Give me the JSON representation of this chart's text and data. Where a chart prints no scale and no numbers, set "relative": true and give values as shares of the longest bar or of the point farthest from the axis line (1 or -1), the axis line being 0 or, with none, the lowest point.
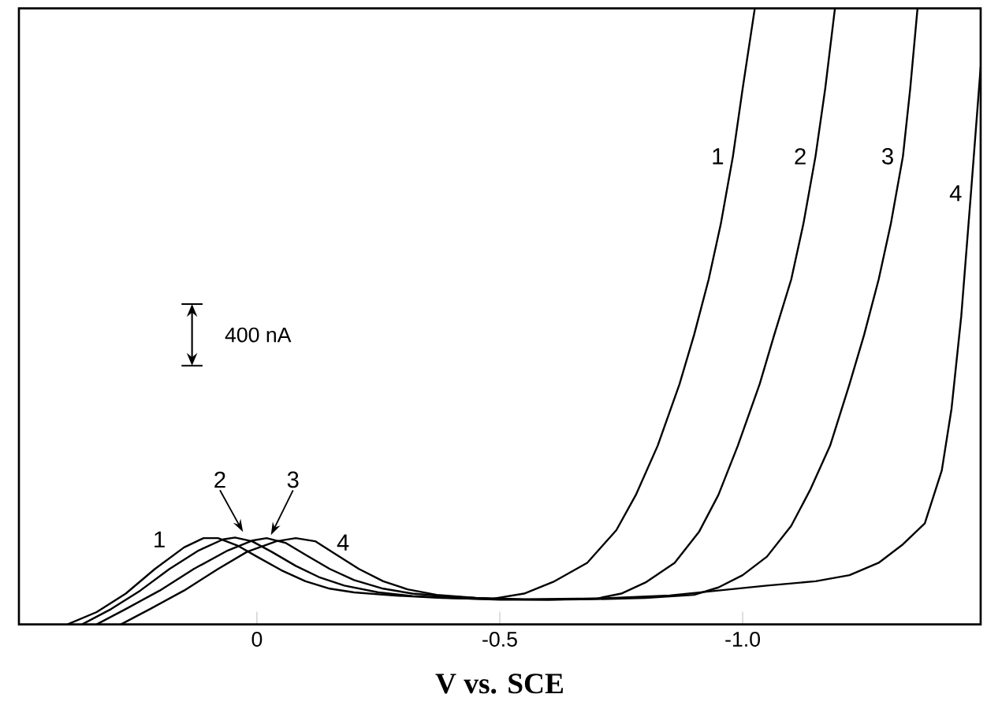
{
  "chart_data": {
    "type": "line",
    "xlabel": "V vs. SCE",
    "relative": true,
    "tick_labels": "x",
    "grid": false,
    "legend": false,
    "marker": "none",
    "line_style": "solid",
    "xlim": [
      0.49,
      -1.49
    ],
    "xticks": [
      0,
      {
        "value": -0.5,
        "label": "-0.5"
      },
      {
        "value": -1.0,
        "label": "-1.0"
      }
    ],
    "series": [
      {
        "name": "1",
        "color": "#000000",
        "x": [
          0.39,
          0.33,
          0.27,
          0.21,
          0.15,
          0.11,
          0.08,
          0.04,
          0.0,
          -0.05,
          -0.1,
          -0.15,
          -0.2,
          -0.28,
          -0.38,
          -0.48,
          -0.55,
          -0.61,
          -0.68,
          -0.74,
          -0.78,
          -0.825,
          -0.87,
          -0.9,
          -0.93,
          -0.955,
          -0.98,
          -1.0,
          -1.025
        ],
        "values": [
          0,
          0.02,
          0.05,
          0.09,
          0.125,
          0.14,
          0.14,
          0.128,
          0.11,
          0.088,
          0.07,
          0.058,
          0.052,
          0.047,
          0.043,
          0.041,
          0.05,
          0.069,
          0.1,
          0.153,
          0.21,
          0.29,
          0.39,
          0.47,
          0.56,
          0.65,
          0.76,
          0.87,
          1.0
        ]
      },
      {
        "name": "2",
        "color": "#000000",
        "x": [
          0.36,
          0.3,
          0.24,
          0.18,
          0.12,
          0.07,
          0.045,
          0.01,
          -0.03,
          -0.08,
          -0.13,
          -0.18,
          -0.25,
          -0.32,
          -0.4,
          -0.5,
          -0.6,
          -0.7,
          -0.75,
          -0.8,
          -0.86,
          -0.91,
          -0.95,
          -0.99,
          -1.035,
          -1.065,
          -1.1,
          -1.125,
          -1.15,
          -1.17,
          -1.19
        ],
        "values": [
          0,
          0.025,
          0.055,
          0.09,
          0.12,
          0.138,
          0.141,
          0.135,
          0.118,
          0.095,
          0.076,
          0.063,
          0.052,
          0.046,
          0.043,
          0.04,
          0.04,
          0.042,
          0.05,
          0.068,
          0.1,
          0.15,
          0.21,
          0.29,
          0.39,
          0.47,
          0.56,
          0.65,
          0.76,
          0.87,
          1.0
        ]
      },
      {
        "name": "3",
        "color": "#000000",
        "x": [
          0.33,
          0.27,
          0.2,
          0.13,
          0.06,
          0.01,
          -0.02,
          -0.06,
          -0.1,
          -0.15,
          -0.2,
          -0.26,
          -0.32,
          -0.4,
          -0.5,
          -0.6,
          -0.7,
          -0.8,
          -0.9,
          -0.95,
          -1.0,
          -1.05,
          -1.1,
          -1.14,
          -1.18,
          -1.22,
          -1.25,
          -1.28,
          -1.305,
          -1.33,
          -1.345,
          -1.36
        ],
        "values": [
          0,
          0.025,
          0.055,
          0.09,
          0.12,
          0.136,
          0.14,
          0.132,
          0.113,
          0.09,
          0.072,
          0.058,
          0.05,
          0.045,
          0.041,
          0.04,
          0.041,
          0.043,
          0.048,
          0.06,
          0.08,
          0.11,
          0.16,
          0.22,
          0.29,
          0.39,
          0.47,
          0.56,
          0.65,
          0.76,
          0.87,
          1.0
        ]
      },
      {
        "name": "4",
        "color": "#000000",
        "x": [
          0.28,
          0.22,
          0.15,
          0.08,
          0.02,
          -0.04,
          -0.08,
          -0.12,
          -0.16,
          -0.21,
          -0.26,
          -0.31,
          -0.37,
          -0.45,
          -0.55,
          -0.7,
          -0.85,
          -0.95,
          -1.05,
          -1.15,
          -1.22,
          -1.28,
          -1.33,
          -1.375,
          -1.41,
          -1.43,
          -1.45,
          -1.47,
          -1.49
        ],
        "values": [
          0,
          0.025,
          0.055,
          0.09,
          0.118,
          0.135,
          0.14,
          0.135,
          0.115,
          0.09,
          0.07,
          0.057,
          0.048,
          0.043,
          0.041,
          0.042,
          0.047,
          0.055,
          0.063,
          0.07,
          0.08,
          0.1,
          0.13,
          0.164,
          0.25,
          0.35,
          0.5,
          0.7,
          0.905
        ]
      }
    ],
    "annotations": [
      "400 nA",
      "1",
      "2",
      "3",
      "4"
    ]
  }
}
